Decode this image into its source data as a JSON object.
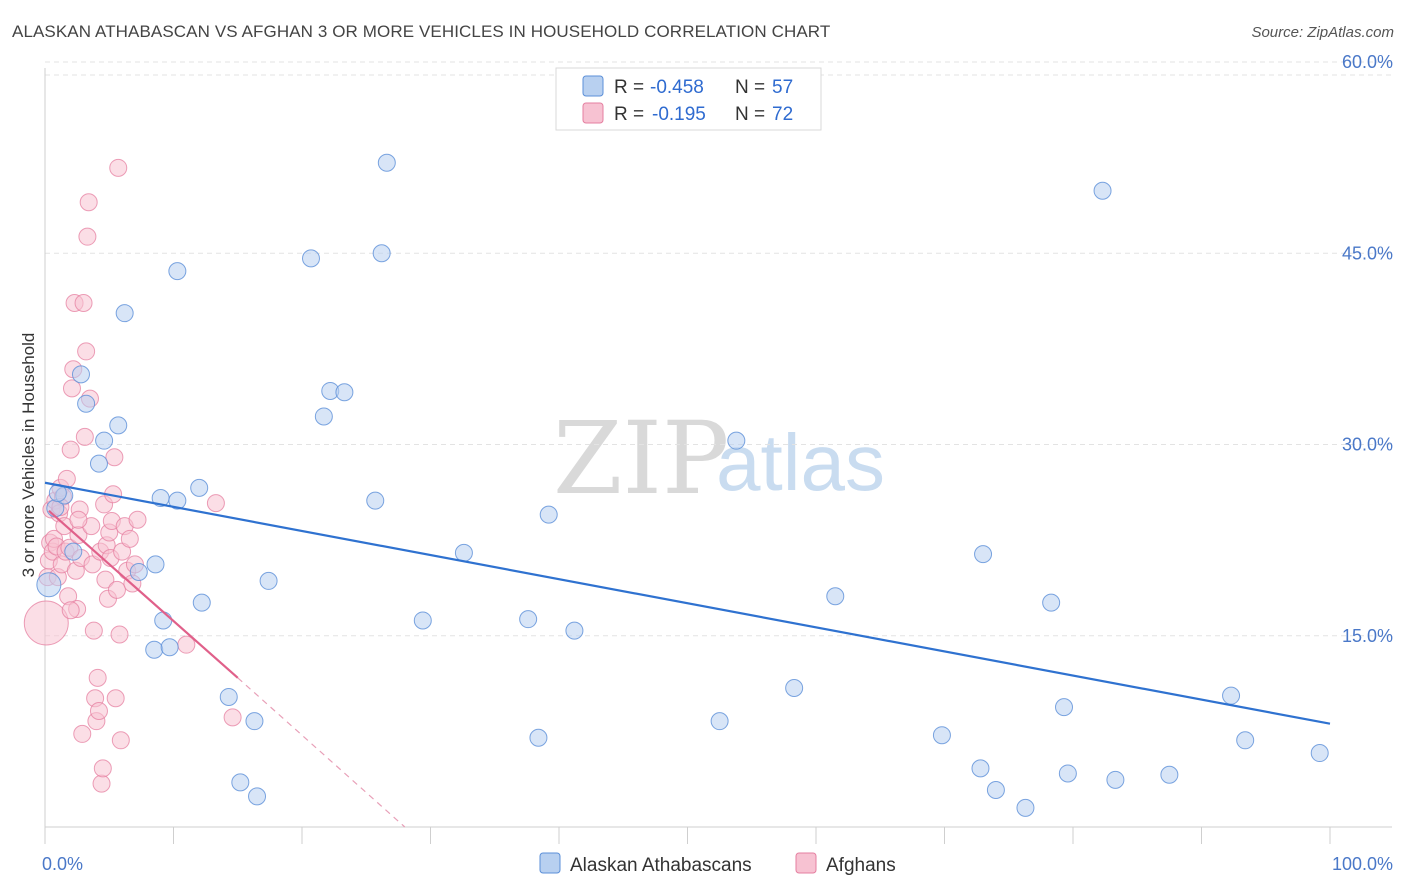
{
  "title": "ALASKAN ATHABASCAN VS AFGHAN 3 OR MORE VEHICLES IN HOUSEHOLD CORRELATION CHART",
  "source": "Source: ZipAtlas.com",
  "colors": {
    "blue": "#5b8fd8",
    "blue_fill": "#b8d0f0",
    "blue_line": "#2f72d0",
    "pink": "#e57fa0",
    "pink_fill": "#f7c2d2",
    "pink_line": "#e0608a",
    "tick_text": "#4a78c8",
    "grid": "#e3e3e3"
  },
  "legend": {
    "row1": {
      "r_label": "R =",
      "r_value": "-0.458",
      "n_label": "N =",
      "n_value": "57"
    },
    "row2": {
      "r_label": "R =",
      "r_value": "-0.195",
      "n_label": "N =",
      "n_value": "72"
    }
  },
  "watermark": {
    "zip": "ZIP",
    "atlas": "atlas"
  },
  "chart_data": {
    "type": "scatter",
    "title": "ALASKAN ATHABASCAN VS AFGHAN 3 OR MORE VEHICLES IN HOUSEHOLD CORRELATION CHART",
    "xlabel": "",
    "ylabel": "3 or more Vehicles in Household",
    "xlim": [
      0,
      100
    ],
    "ylim": [
      0,
      62
    ],
    "x_tick_labels": [
      "0.0%",
      "100.0%"
    ],
    "y_ticks": [
      15,
      30,
      45,
      60
    ],
    "y_tick_labels": [
      "15.0%",
      "30.0%",
      "45.0%",
      "60.0%"
    ],
    "series": [
      {
        "name": "Alaskan Athabascans",
        "points": [
          [
            0.3,
            19
          ],
          [
            0.8,
            25
          ],
          [
            1.5,
            26
          ],
          [
            2.8,
            35.5
          ],
          [
            3.2,
            33.2
          ],
          [
            4.2,
            28.5
          ],
          [
            4.6,
            30.3
          ],
          [
            5.7,
            31.5
          ],
          [
            6.2,
            40.3
          ],
          [
            7.3,
            20.0
          ],
          [
            8.5,
            13.9
          ],
          [
            8.6,
            20.6
          ],
          [
            9.2,
            16.2
          ],
          [
            9.7,
            14.1
          ],
          [
            9.0,
            25.8
          ],
          [
            10.3,
            25.6
          ],
          [
            10.3,
            43.6
          ],
          [
            12.0,
            26.6
          ],
          [
            12.2,
            17.6
          ],
          [
            14.3,
            10.2
          ],
          [
            15.2,
            3.5
          ],
          [
            16.3,
            8.3
          ],
          [
            16.5,
            2.4
          ],
          [
            17.4,
            19.3
          ],
          [
            20.7,
            44.6
          ],
          [
            21.7,
            32.2
          ],
          [
            22.2,
            34.2
          ],
          [
            23.3,
            34.1
          ],
          [
            25.7,
            25.6
          ],
          [
            26.2,
            45.0
          ],
          [
            26.6,
            52.1
          ],
          [
            29.4,
            16.2
          ],
          [
            32.6,
            21.5
          ],
          [
            37.6,
            16.3
          ],
          [
            38.4,
            7.0
          ],
          [
            39.2,
            24.5
          ],
          [
            41.2,
            15.4
          ],
          [
            52.5,
            8.3
          ],
          [
            53.8,
            30.3
          ],
          [
            58.3,
            10.9
          ],
          [
            61.5,
            18.1
          ],
          [
            69.8,
            7.2
          ],
          [
            72.8,
            4.6
          ],
          [
            73.0,
            21.4
          ],
          [
            74.0,
            2.9
          ],
          [
            76.3,
            1.5
          ],
          [
            78.3,
            17.6
          ],
          [
            79.3,
            9.4
          ],
          [
            79.6,
            4.2
          ],
          [
            82.3,
            49.9
          ],
          [
            83.3,
            3.7
          ],
          [
            87.5,
            4.1
          ],
          [
            92.3,
            10.3
          ],
          [
            93.4,
            6.8
          ],
          [
            99.2,
            5.8
          ],
          [
            1.0,
            26.2
          ],
          [
            2.2,
            21.6
          ]
        ]
      },
      {
        "name": "Afghans",
        "points": [
          [
            0.1,
            16
          ],
          [
            0.2,
            19.6
          ],
          [
            0.3,
            20.9
          ],
          [
            0.4,
            22.3
          ],
          [
            0.5,
            24.9
          ],
          [
            0.6,
            21.6
          ],
          [
            0.7,
            22.6
          ],
          [
            0.8,
            25.6
          ],
          [
            0.9,
            22.0
          ],
          [
            1.0,
            19.6
          ],
          [
            1.1,
            24.6
          ],
          [
            1.2,
            26.6
          ],
          [
            1.3,
            20.6
          ],
          [
            1.4,
            25.9
          ],
          [
            1.5,
            23.6
          ],
          [
            1.6,
            21.6
          ],
          [
            1.7,
            27.3
          ],
          [
            1.8,
            18.1
          ],
          [
            1.9,
            21.9
          ],
          [
            2.0,
            29.6
          ],
          [
            2.1,
            34.4
          ],
          [
            2.2,
            35.9
          ],
          [
            2.3,
            41.1
          ],
          [
            2.4,
            20.1
          ],
          [
            2.5,
            17.1
          ],
          [
            2.6,
            22.9
          ],
          [
            2.7,
            24.9
          ],
          [
            2.8,
            21.1
          ],
          [
            2.9,
            7.3
          ],
          [
            3.0,
            41.1
          ],
          [
            3.1,
            30.6
          ],
          [
            3.2,
            37.3
          ],
          [
            3.3,
            46.3
          ],
          [
            3.4,
            49.0
          ],
          [
            3.5,
            33.6
          ],
          [
            3.6,
            23.6
          ],
          [
            3.7,
            20.6
          ],
          [
            3.8,
            15.4
          ],
          [
            3.9,
            10.1
          ],
          [
            4.0,
            8.3
          ],
          [
            4.1,
            11.7
          ],
          [
            4.2,
            9.1
          ],
          [
            4.3,
            21.6
          ],
          [
            4.4,
            3.4
          ],
          [
            4.5,
            4.6
          ],
          [
            4.6,
            25.3
          ],
          [
            4.7,
            19.4
          ],
          [
            4.8,
            22.1
          ],
          [
            4.9,
            17.9
          ],
          [
            5.0,
            23.1
          ],
          [
            5.1,
            21.1
          ],
          [
            5.2,
            24.0
          ],
          [
            5.3,
            26.1
          ],
          [
            5.4,
            29.0
          ],
          [
            5.5,
            10.1
          ],
          [
            5.6,
            18.6
          ],
          [
            5.7,
            51.7
          ],
          [
            5.8,
            15.1
          ],
          [
            5.9,
            6.8
          ],
          [
            6.0,
            21.6
          ],
          [
            6.2,
            23.6
          ],
          [
            6.4,
            20.1
          ],
          [
            6.6,
            22.6
          ],
          [
            6.8,
            19.1
          ],
          [
            7.0,
            20.6
          ],
          [
            7.2,
            24.1
          ],
          [
            11.0,
            14.3
          ],
          [
            13.3,
            25.4
          ],
          [
            14.6,
            8.6
          ],
          [
            2.0,
            17.0
          ],
          [
            1.2,
            25.1
          ],
          [
            2.6,
            24.1
          ]
        ]
      }
    ],
    "trendlines": [
      {
        "series": "Alaskan Athabascans",
        "x": [
          0,
          100
        ],
        "y": [
          27.0,
          8.1
        ]
      },
      {
        "series": "Afghans",
        "x": [
          0.3,
          15
        ],
        "y": [
          24.8,
          11.7
        ],
        "dashed_extension_to": [
          28,
          0
        ]
      }
    ],
    "legend_placement": "top-center",
    "grid": true
  },
  "bottom_legend": [
    {
      "label": "Alaskan Athabascans"
    },
    {
      "label": "Afghans"
    }
  ]
}
